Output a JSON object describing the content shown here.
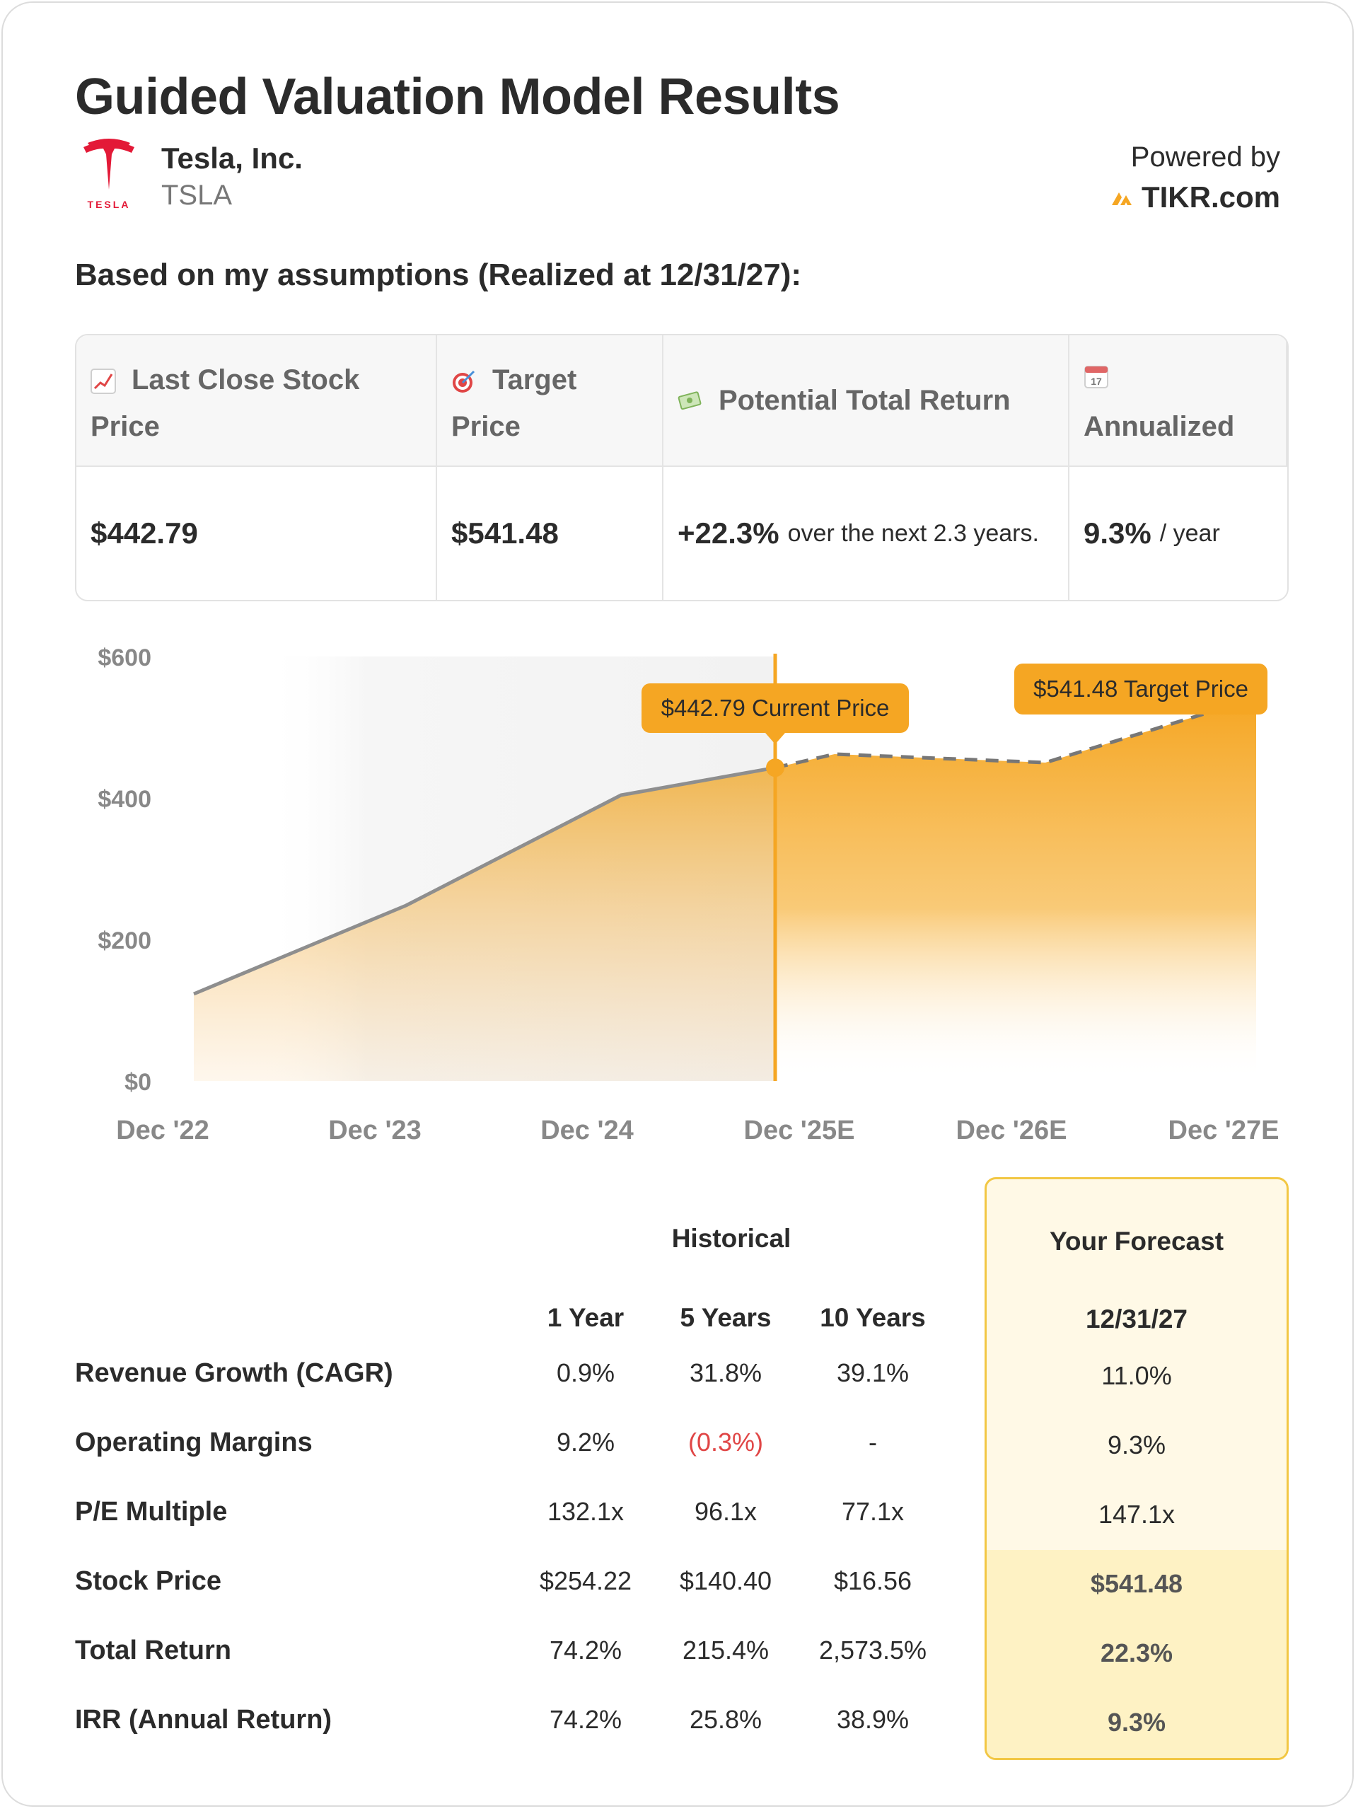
{
  "header": {
    "title": "Guided Valuation Model Results",
    "company_name": "Tesla, Inc.",
    "ticker": "TSLA",
    "powered_by": "Powered by",
    "brand": "TIKR.com"
  },
  "assumptions_heading": "Based on my assumptions (Realized at 12/31/27):",
  "summary": {
    "last_close": {
      "label_line1": "Last Close Stock",
      "label_line2": "Price",
      "value": "$442.79",
      "icon": "chart-increasing-icon"
    },
    "target": {
      "label_line1": "Target",
      "label_line2": "Price",
      "value": "$541.48",
      "icon": "target-icon"
    },
    "total_return": {
      "label": "Potential Total Return",
      "value": "+22.3%",
      "suffix": "over the next 2.3 years.",
      "icon": "money-icon"
    },
    "annualized": {
      "label": "Annualized",
      "value": "9.3%",
      "suffix": "/ year",
      "icon": "calendar-icon",
      "icon_text": "17"
    }
  },
  "chart_data": {
    "type": "area",
    "x_labels": [
      "Dec '22",
      "Dec '23",
      "Dec '24",
      "Dec '25E",
      "Dec '26E",
      "Dec '27E"
    ],
    "y_ticks": [
      "$0",
      "$200",
      "$400",
      "$600"
    ],
    "ylim": [
      0,
      600
    ],
    "historical": [
      {
        "x": "Dec '22",
        "y": 123
      },
      {
        "x": "Dec '23",
        "y": 248
      },
      {
        "x": "Dec '24",
        "y": 404
      },
      {
        "x": "Current",
        "y": 442.79
      }
    ],
    "forecast": [
      {
        "x": "Current",
        "y": 442.79
      },
      {
        "x": "Dec '25E",
        "y": 462
      },
      {
        "x": "Dec '26E",
        "y": 450
      },
      {
        "x": "Dec '27E",
        "y": 541.48
      }
    ],
    "annotations": {
      "current": "$442.79 Current Price",
      "target": "$541.48 Target Price"
    },
    "colors": {
      "accent": "#f5a623",
      "line": "#8e8e8e"
    }
  },
  "table": {
    "group_historical": "Historical",
    "group_forecast": "Your Forecast",
    "columns": [
      "1 Year",
      "5 Years",
      "10 Years",
      "12/31/27"
    ],
    "rows": [
      {
        "label": "Revenue Growth (CAGR)",
        "values": [
          "0.9%",
          "31.8%",
          "39.1%",
          "11.0%"
        ]
      },
      {
        "label": "Operating Margins",
        "values": [
          "9.2%",
          "(0.3%)",
          "-",
          "9.3%"
        ]
      },
      {
        "label": "P/E Multiple",
        "values": [
          "132.1x",
          "96.1x",
          "77.1x",
          "147.1x"
        ]
      },
      {
        "label": "Stock Price",
        "values": [
          "$254.22",
          "$140.40",
          "$16.56",
          "$541.48"
        ]
      },
      {
        "label": "Total Return",
        "values": [
          "74.2%",
          "215.4%",
          "2,573.5%",
          "22.3%"
        ]
      },
      {
        "label": "IRR (Annual Return)",
        "values": [
          "74.2%",
          "25.8%",
          "38.9%",
          "9.3%"
        ]
      }
    ]
  }
}
